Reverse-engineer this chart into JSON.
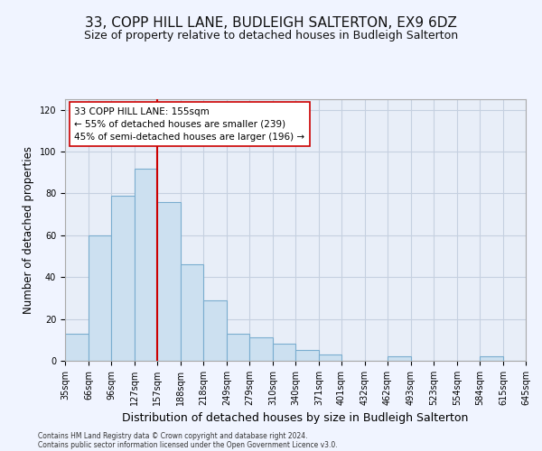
{
  "title": "33, COPP HILL LANE, BUDLEIGH SALTERTON, EX9 6DZ",
  "subtitle": "Size of property relative to detached houses in Budleigh Salterton",
  "xlabel": "Distribution of detached houses by size in Budleigh Salterton",
  "ylabel": "Number of detached properties",
  "footnote1": "Contains HM Land Registry data © Crown copyright and database right 2024.",
  "footnote2": "Contains public sector information licensed under the Open Government Licence v3.0.",
  "annotation_line1": "33 COPP HILL LANE: 155sqm",
  "annotation_line2": "← 55% of detached houses are smaller (239)",
  "annotation_line3": "45% of semi-detached houses are larger (196) →",
  "bar_color": "#cce0f0",
  "bar_edge_color": "#7aadcf",
  "vline_color": "#cc0000",
  "vline_x": 157,
  "bin_edges": [
    35,
    66,
    96,
    127,
    157,
    188,
    218,
    249,
    279,
    310,
    340,
    371,
    401,
    432,
    462,
    493,
    523,
    554,
    584,
    615,
    645
  ],
  "bin_heights": [
    13,
    60,
    79,
    92,
    76,
    46,
    29,
    13,
    11,
    8,
    5,
    3,
    0,
    0,
    2,
    0,
    0,
    0,
    2,
    0
  ],
  "ylim": [
    0,
    125
  ],
  "yticks": [
    0,
    20,
    40,
    60,
    80,
    100,
    120
  ],
  "background_color": "#f0f4ff",
  "plot_bg_color": "#e8eef8",
  "grid_color": "#c5d0e0",
  "title_fontsize": 11,
  "subtitle_fontsize": 9,
  "xlabel_fontsize": 9,
  "ylabel_fontsize": 8.5,
  "tick_fontsize": 7,
  "footnote_fontsize": 5.5
}
